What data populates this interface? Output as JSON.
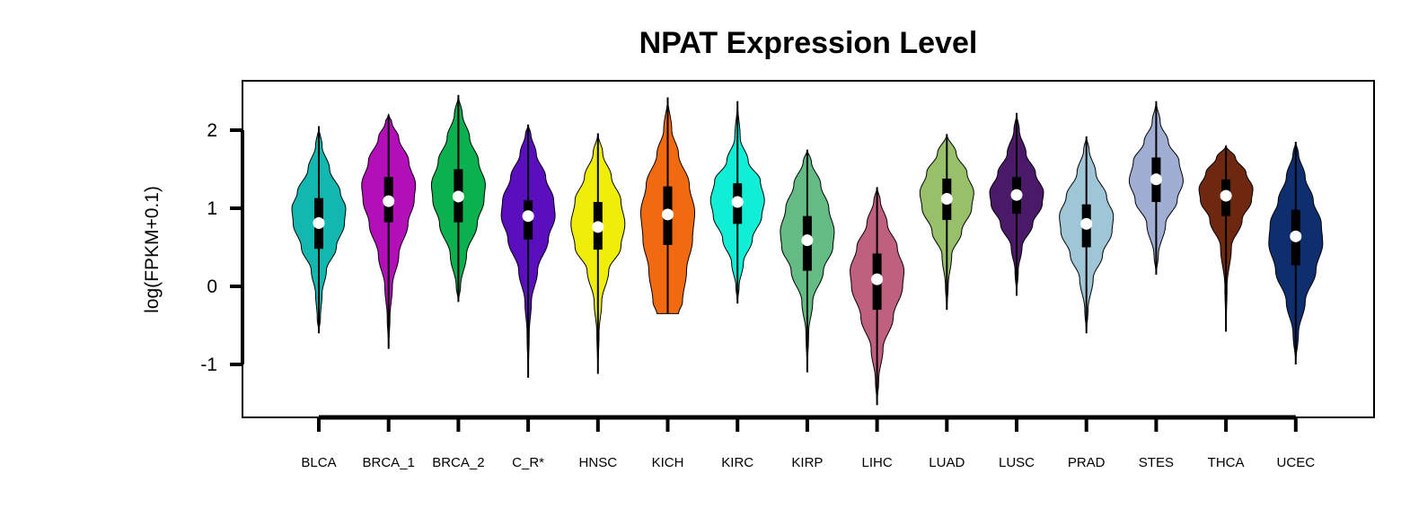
{
  "chart_data": {
    "type": "violin",
    "title": "NPAT Expression Level",
    "ylabel": "log(FPKM+0.1)",
    "xlabel": "",
    "ylim": [
      -1.6,
      2.5
    ],
    "yticks": [
      2,
      1,
      0,
      -1
    ],
    "grid": false,
    "legend": "none",
    "series": [
      {
        "category": "BLCA",
        "color": "#12B8B0",
        "min": -0.6,
        "q1": 0.48,
        "median": 0.81,
        "q3": 1.13,
        "max": 2.05,
        "width": 0.78,
        "profile": [
          [
            -0.6,
            0
          ],
          [
            -0.4,
            0.06
          ],
          [
            -0.1,
            0.12
          ],
          [
            0.2,
            0.28
          ],
          [
            0.5,
            0.65
          ],
          [
            0.8,
            0.95
          ],
          [
            1.0,
            1.0
          ],
          [
            1.2,
            0.8
          ],
          [
            1.5,
            0.4
          ],
          [
            1.8,
            0.12
          ],
          [
            2.05,
            0
          ]
        ]
      },
      {
        "category": "BRCA_1",
        "color": "#B30FB8",
        "min": -0.8,
        "q1": 0.82,
        "median": 1.09,
        "q3": 1.4,
        "max": 2.2,
        "width": 0.78,
        "profile": [
          [
            -0.8,
            0
          ],
          [
            -0.4,
            0.05
          ],
          [
            0,
            0.14
          ],
          [
            0.4,
            0.38
          ],
          [
            0.8,
            0.72
          ],
          [
            1.1,
            0.95
          ],
          [
            1.3,
            1.0
          ],
          [
            1.6,
            0.75
          ],
          [
            1.9,
            0.38
          ],
          [
            2.1,
            0.12
          ],
          [
            2.2,
            0
          ]
        ]
      },
      {
        "category": "BRCA_2",
        "color": "#0BB04F",
        "min": -0.2,
        "q1": 0.82,
        "median": 1.15,
        "q3": 1.5,
        "max": 2.45,
        "width": 0.78,
        "profile": [
          [
            -0.2,
            0
          ],
          [
            0,
            0.08
          ],
          [
            0.4,
            0.3
          ],
          [
            0.8,
            0.7
          ],
          [
            1.1,
            0.95
          ],
          [
            1.3,
            1.0
          ],
          [
            1.6,
            0.75
          ],
          [
            1.9,
            0.42
          ],
          [
            2.2,
            0.15
          ],
          [
            2.45,
            0
          ]
        ]
      },
      {
        "category": "C_R*",
        "color": "#5A0EBE",
        "min": -1.17,
        "q1": 0.6,
        "median": 0.9,
        "q3": 1.1,
        "max": 2.07,
        "width": 0.78,
        "profile": [
          [
            -1.17,
            0
          ],
          [
            -0.6,
            0.04
          ],
          [
            -0.2,
            0.12
          ],
          [
            0.2,
            0.35
          ],
          [
            0.6,
            0.75
          ],
          [
            0.9,
            1.0
          ],
          [
            1.1,
            0.95
          ],
          [
            1.4,
            0.65
          ],
          [
            1.7,
            0.3
          ],
          [
            1.95,
            0.1
          ],
          [
            2.07,
            0
          ]
        ]
      },
      {
        "category": "HNSC",
        "color": "#EEEE0A",
        "min": -1.12,
        "q1": 0.47,
        "median": 0.76,
        "q3": 1.08,
        "max": 1.96,
        "width": 0.78,
        "profile": [
          [
            -1.12,
            0
          ],
          [
            -0.6,
            0.04
          ],
          [
            -0.2,
            0.14
          ],
          [
            0.2,
            0.4
          ],
          [
            0.5,
            0.85
          ],
          [
            0.8,
            1.0
          ],
          [
            1.1,
            0.85
          ],
          [
            1.4,
            0.5
          ],
          [
            1.7,
            0.18
          ],
          [
            1.96,
            0
          ]
        ]
      },
      {
        "category": "KICH",
        "color": "#F26A10",
        "min": -0.35,
        "q1": 0.53,
        "median": 0.92,
        "q3": 1.28,
        "max": 2.42,
        "width": 0.78,
        "profile": [
          [
            -0.35,
            0.4
          ],
          [
            -0.2,
            0.55
          ],
          [
            0.2,
            0.7
          ],
          [
            0.6,
            0.92
          ],
          [
            0.95,
            1.0
          ],
          [
            1.3,
            0.8
          ],
          [
            1.7,
            0.4
          ],
          [
            2.0,
            0.15
          ],
          [
            2.42,
            0
          ]
        ]
      },
      {
        "category": "KIRC",
        "color": "#10EED6",
        "min": -0.22,
        "q1": 0.8,
        "median": 1.08,
        "q3": 1.32,
        "max": 2.37,
        "width": 0.78,
        "profile": [
          [
            -0.22,
            0
          ],
          [
            0,
            0.06
          ],
          [
            0.3,
            0.22
          ],
          [
            0.6,
            0.55
          ],
          [
            0.9,
            0.9
          ],
          [
            1.1,
            1.0
          ],
          [
            1.35,
            0.85
          ],
          [
            1.6,
            0.4
          ],
          [
            1.9,
            0.1
          ],
          [
            2.37,
            0
          ]
        ]
      },
      {
        "category": "KIRP",
        "color": "#64BB84",
        "min": -1.1,
        "q1": 0.2,
        "median": 0.59,
        "q3": 0.9,
        "max": 1.75,
        "width": 0.78,
        "profile": [
          [
            -1.1,
            0
          ],
          [
            -0.6,
            0.05
          ],
          [
            -0.2,
            0.2
          ],
          [
            0.2,
            0.6
          ],
          [
            0.5,
            0.95
          ],
          [
            0.7,
            1.0
          ],
          [
            1.0,
            0.8
          ],
          [
            1.3,
            0.5
          ],
          [
            1.6,
            0.15
          ],
          [
            1.75,
            0
          ]
        ]
      },
      {
        "category": "LIHC",
        "color": "#BF607F",
        "min": -1.52,
        "q1": -0.3,
        "median": 0.09,
        "q3": 0.42,
        "max": 1.27,
        "width": 0.78,
        "profile": [
          [
            -1.52,
            0
          ],
          [
            -1.2,
            0.06
          ],
          [
            -0.8,
            0.22
          ],
          [
            -0.4,
            0.6
          ],
          [
            0,
            0.95
          ],
          [
            0.2,
            1.0
          ],
          [
            0.5,
            0.75
          ],
          [
            0.8,
            0.38
          ],
          [
            1.1,
            0.12
          ],
          [
            1.27,
            0
          ]
        ]
      },
      {
        "category": "LUAD",
        "color": "#98C06A",
        "min": -0.3,
        "q1": 0.85,
        "median": 1.12,
        "q3": 1.38,
        "max": 1.95,
        "width": 0.78,
        "profile": [
          [
            -0.3,
            0
          ],
          [
            0,
            0.05
          ],
          [
            0.4,
            0.18
          ],
          [
            0.7,
            0.55
          ],
          [
            1.0,
            0.92
          ],
          [
            1.2,
            1.0
          ],
          [
            1.45,
            0.75
          ],
          [
            1.7,
            0.35
          ],
          [
            1.95,
            0
          ]
        ]
      },
      {
        "category": "LUSC",
        "color": "#4A1968",
        "min": -0.12,
        "q1": 0.93,
        "median": 1.17,
        "q3": 1.4,
        "max": 2.22,
        "width": 0.78,
        "profile": [
          [
            -0.12,
            0
          ],
          [
            0.2,
            0.06
          ],
          [
            0.5,
            0.2
          ],
          [
            0.8,
            0.6
          ],
          [
            1.05,
            0.95
          ],
          [
            1.2,
            1.0
          ],
          [
            1.45,
            0.7
          ],
          [
            1.7,
            0.35
          ],
          [
            2.0,
            0.1
          ],
          [
            2.22,
            0
          ]
        ]
      },
      {
        "category": "PRAD",
        "color": "#9EC6D6",
        "min": -0.6,
        "q1": 0.5,
        "median": 0.8,
        "q3": 1.05,
        "max": 1.92,
        "width": 0.78,
        "profile": [
          [
            -0.6,
            0
          ],
          [
            -0.3,
            0.06
          ],
          [
            0.1,
            0.25
          ],
          [
            0.4,
            0.6
          ],
          [
            0.7,
            0.95
          ],
          [
            0.9,
            1.0
          ],
          [
            1.15,
            0.75
          ],
          [
            1.45,
            0.35
          ],
          [
            1.75,
            0.1
          ],
          [
            1.92,
            0
          ]
        ]
      },
      {
        "category": "STES",
        "color": "#9FAED2",
        "min": 0.15,
        "q1": 1.08,
        "median": 1.37,
        "q3": 1.65,
        "max": 2.37,
        "width": 0.78,
        "profile": [
          [
            0.15,
            0
          ],
          [
            0.4,
            0.08
          ],
          [
            0.8,
            0.35
          ],
          [
            1.1,
            0.78
          ],
          [
            1.35,
            1.0
          ],
          [
            1.6,
            0.85
          ],
          [
            1.85,
            0.45
          ],
          [
            2.1,
            0.15
          ],
          [
            2.37,
            0
          ]
        ]
      },
      {
        "category": "THCA",
        "color": "#6E2810",
        "min": -0.58,
        "q1": 0.9,
        "median": 1.16,
        "q3": 1.37,
        "max": 1.8,
        "width": 0.78,
        "profile": [
          [
            -0.58,
            0
          ],
          [
            0,
            0.04
          ],
          [
            0.5,
            0.2
          ],
          [
            0.85,
            0.6
          ],
          [
            1.1,
            0.95
          ],
          [
            1.25,
            1.0
          ],
          [
            1.45,
            0.75
          ],
          [
            1.65,
            0.35
          ],
          [
            1.8,
            0
          ]
        ]
      },
      {
        "category": "UCEC",
        "color": "#0E2E6E",
        "min": -1.0,
        "q1": 0.27,
        "median": 0.64,
        "q3": 0.98,
        "max": 1.85,
        "width": 0.78,
        "profile": [
          [
            -1.0,
            0
          ],
          [
            -0.6,
            0.1
          ],
          [
            -0.2,
            0.35
          ],
          [
            0.2,
            0.75
          ],
          [
            0.55,
            1.0
          ],
          [
            0.8,
            0.95
          ],
          [
            1.1,
            0.65
          ],
          [
            1.4,
            0.35
          ],
          [
            1.7,
            0.1
          ],
          [
            1.85,
            0
          ]
        ]
      }
    ]
  }
}
